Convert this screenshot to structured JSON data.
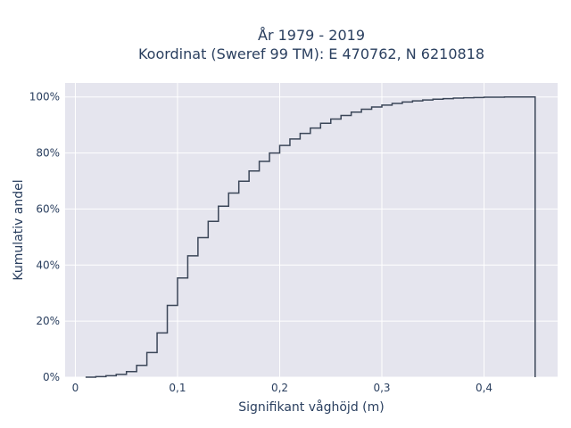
{
  "chart_data": {
    "type": "line",
    "line_shape": "step",
    "title": [
      "År 1979 - 2019",
      "Koordinat (Sweref 99 TM): E 470762, N 6210818"
    ],
    "xlabel": "Signifikant våghöjd (m)",
    "ylabel": "Kumulativ andel",
    "xlim": [
      -0.01,
      0.472
    ],
    "ylim": [
      0,
      1.05
    ],
    "x_ticks": [
      0,
      0.1,
      0.2,
      0.3,
      0.4
    ],
    "x_tick_labels": [
      "0",
      "0,1",
      "0,2",
      "0,3",
      "0,4"
    ],
    "y_ticks": [
      0,
      0.2,
      0.4,
      0.6,
      0.8,
      1.0
    ],
    "y_tick_labels": [
      "0%",
      "20%",
      "40%",
      "60%",
      "80%",
      "100%"
    ],
    "grid": true,
    "series": [
      {
        "color": "#3b4658",
        "x": [
          0.01,
          0.02,
          0.03,
          0.04,
          0.05,
          0.06,
          0.07,
          0.08,
          0.09,
          0.1,
          0.11,
          0.12,
          0.13,
          0.14,
          0.15,
          0.16,
          0.17,
          0.18,
          0.19,
          0.2,
          0.21,
          0.22,
          0.23,
          0.24,
          0.25,
          0.26,
          0.27,
          0.28,
          0.29,
          0.3,
          0.31,
          0.32,
          0.33,
          0.34,
          0.35,
          0.36,
          0.37,
          0.38,
          0.39,
          0.4,
          0.41,
          0.42,
          0.43,
          0.44,
          0.45
        ],
        "y": [
          0.0,
          0.002,
          0.005,
          0.01,
          0.02,
          0.042,
          0.088,
          0.158,
          0.256,
          0.354,
          0.433,
          0.498,
          0.556,
          0.61,
          0.657,
          0.699,
          0.736,
          0.77,
          0.8,
          0.827,
          0.85,
          0.87,
          0.889,
          0.906,
          0.921,
          0.934,
          0.946,
          0.956,
          0.964,
          0.971,
          0.977,
          0.982,
          0.986,
          0.989,
          0.992,
          0.994,
          0.996,
          0.997,
          0.998,
          0.999,
          0.999,
          1.0,
          1.0,
          1.0,
          1.0
        ]
      }
    ]
  }
}
